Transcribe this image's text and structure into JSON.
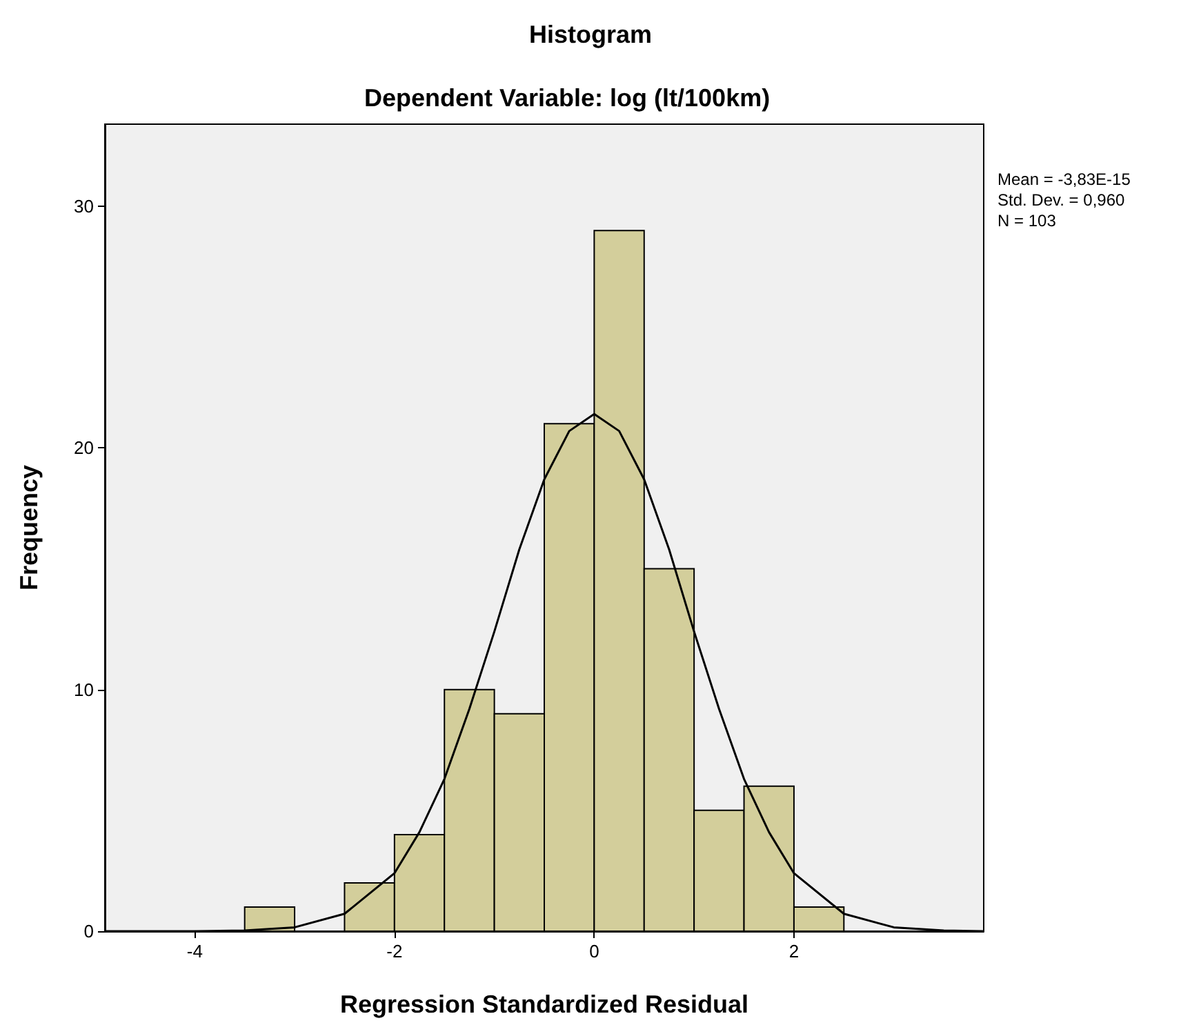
{
  "chart_data": {
    "type": "histogram",
    "title": "Histogram",
    "subtitle": "Dependent Variable: log (lt/100km)",
    "xlabel": "Regression Standardized Residual",
    "ylabel": "Frequency",
    "bins": [
      -3.5,
      -3,
      -2.5,
      -2,
      -1.5,
      -1,
      -0.5,
      0,
      0.5,
      1,
      1.5,
      2,
      2.5
    ],
    "values": [
      1,
      0,
      2,
      4,
      10,
      9,
      21,
      29,
      15,
      5,
      6,
      1
    ],
    "color": "#d3ce9b",
    "series": [
      {
        "type": "line",
        "color": "#000000",
        "marker": "none",
        "x": [
          -4.9,
          -4,
          -3.5,
          -3,
          -2.5,
          -2,
          -1.75,
          -1.5,
          -1.25,
          -1,
          -0.75,
          -0.5,
          -0.25,
          0,
          0.25,
          0.5,
          0.75,
          1,
          1.25,
          1.5,
          1.75,
          2,
          2.5,
          3,
          3.5,
          3.9
        ],
        "values": [
          0,
          0,
          0.03,
          0.16,
          0.72,
          2.4,
          4.1,
          6.3,
          9.2,
          12.4,
          15.8,
          18.7,
          20.7,
          21.4,
          20.7,
          18.7,
          15.8,
          12.4,
          9.2,
          6.3,
          4.1,
          2.4,
          0.72,
          0.16,
          0.03,
          0
        ]
      }
    ],
    "xlim": [
      -4.9,
      3.9
    ],
    "ylim": [
      0,
      33.4
    ],
    "xticks": [
      -4,
      -2,
      0,
      2
    ],
    "yticks": [
      0,
      10,
      20,
      30
    ],
    "grid": false,
    "annotations": [
      "Mean = -3,83E-15",
      "Std. Dev. = 0,960",
      "N = 103"
    ]
  }
}
